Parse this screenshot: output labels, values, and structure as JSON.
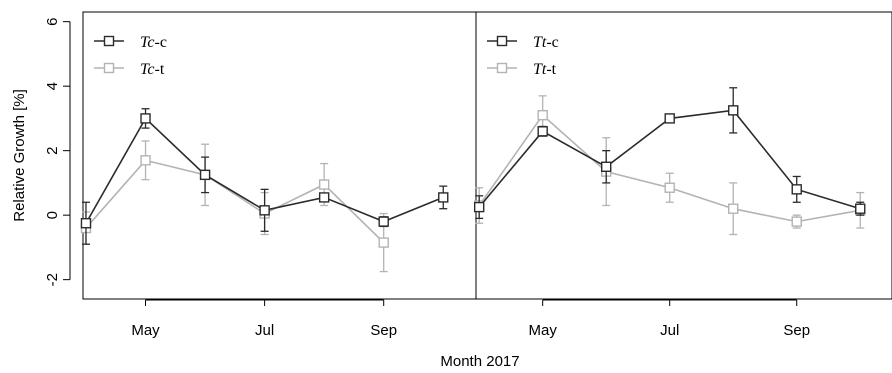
{
  "chart_data": {
    "type": "line",
    "xlabel": "Month 2017",
    "ylabel": "Relative Growth [%]",
    "ylim": [
      -2.6,
      6.3
    ],
    "yticks": [
      -2,
      0,
      2,
      4,
      6
    ],
    "xticks": [
      {
        "label": "May",
        "x": 1
      },
      {
        "label": "Jul",
        "x": 3
      },
      {
        "label": "Sep",
        "x": 5
      }
    ],
    "colors": {
      "control": "#2b2b2b",
      "treatment": "#b3b3b3"
    },
    "panels": [
      {
        "id": "tc",
        "xlim": [
          -0.05,
          6.55
        ],
        "series": [
          {
            "name_italic": "Tc",
            "name_suffix": "-c",
            "role": "control",
            "x": [
              0,
              1,
              2,
              3,
              4,
              5,
              6
            ],
            "y": [
              -0.25,
              3.0,
              1.25,
              0.15,
              0.55,
              -0.2,
              0.55
            ],
            "err": [
              0.65,
              0.3,
              0.55,
              0.65,
              0.12,
              0.15,
              0.35
            ]
          },
          {
            "name_italic": "Tc",
            "name_suffix": "-t",
            "role": "treatment",
            "x": [
              0,
              1,
              2,
              3,
              4,
              5
            ],
            "y": [
              -0.4,
              1.7,
              1.25,
              0.05,
              0.95,
              -0.85
            ],
            "err": [
              0.5,
              0.6,
              0.95,
              0.65,
              0.65,
              0.9
            ]
          }
        ]
      },
      {
        "id": "tt",
        "xlim": [
          -0.05,
          6.5
        ],
        "series": [
          {
            "name_italic": "Tt",
            "name_suffix": "-c",
            "role": "control",
            "x": [
              0,
              1,
              2,
              3,
              4,
              5,
              6
            ],
            "y": [
              0.25,
              2.6,
              1.5,
              3.0,
              3.25,
              0.8,
              0.2
            ],
            "err": [
              0.35,
              0.15,
              0.5,
              0.12,
              0.7,
              0.4,
              0.2
            ]
          },
          {
            "name_italic": "Tt",
            "name_suffix": "-t",
            "role": "treatment",
            "x": [
              0,
              1,
              2,
              3,
              4,
              5,
              6
            ],
            "y": [
              0.3,
              3.1,
              1.35,
              0.85,
              0.2,
              -0.2,
              0.15
            ],
            "err": [
              0.55,
              0.6,
              1.05,
              0.45,
              0.8,
              0.2,
              0.55
            ]
          }
        ]
      }
    ]
  }
}
